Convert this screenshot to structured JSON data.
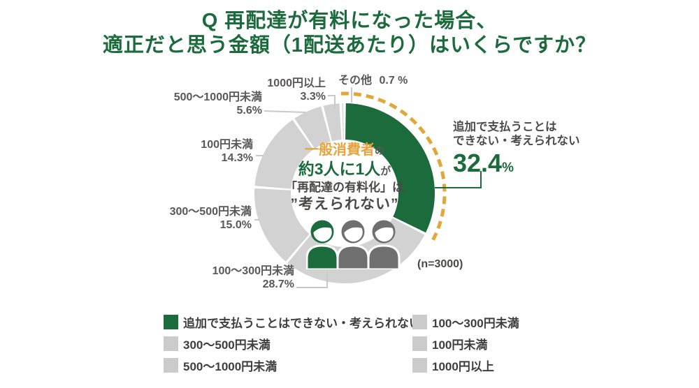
{
  "title": {
    "line1": "Q 再配達が有料になった場合、",
    "line2": "適正だと思う金額（1配送あたり）はいくらですか？"
  },
  "chart_data": {
    "type": "donut",
    "title": "再配達が有料になった場合、適正だと思う金額（1配送あたり）",
    "unit": "%",
    "sample_size": 3000,
    "sample_label": "(n=3000)",
    "legend_position": "bottom",
    "segments": [
      {
        "label": "追加で支払うことはできない・考えられない",
        "label_line1": "追加で支払うことは",
        "label_line2": "できない・考えられない",
        "value": 32.4,
        "pct": "32.4",
        "pct_unit": "%",
        "color": "#1B6B3C",
        "emphasized": true
      },
      {
        "label": "100〜300円未満",
        "value": 28.7,
        "pct": "28.7%",
        "color": "#D2D2D2"
      },
      {
        "label": "300〜500円未満",
        "value": 15.0,
        "pct": "15.0%",
        "color": "#D2D2D2"
      },
      {
        "label": "100円未満",
        "value": 14.3,
        "pct": "14.3%",
        "color": "#D2D2D2"
      },
      {
        "label": "500〜1000円未満",
        "value": 5.6,
        "pct": "5.6%",
        "color": "#D2D2D2"
      },
      {
        "label": "1000円以上",
        "value": 3.3,
        "pct": "3.3%",
        "color": "#D2D2D2"
      },
      {
        "label": "その他",
        "value": 0.7,
        "pct": "0.7 %",
        "color": "#DCDCDC"
      }
    ],
    "center_note": {
      "line1_emphasis": "一般消費者",
      "line1_tail": "の",
      "line2_emphasis": "約3人に1人",
      "line2_tail": "が",
      "line3": "「再配達の有料化」は",
      "line4": "”考えられない”"
    }
  },
  "colors": {
    "title_green": "#1B6B3C",
    "accent_green": "#1B6B3C",
    "segment_gray": "#D2D2D2",
    "highlight_orange": "#E8A33D",
    "dashed_arc_yellow": "#E2A73B",
    "connector_gray": "#C9C9C9",
    "label_text_gray": "#595757",
    "legend_swatch_gray": "#CBCBCB",
    "person_gray": "#6F6F6F"
  }
}
